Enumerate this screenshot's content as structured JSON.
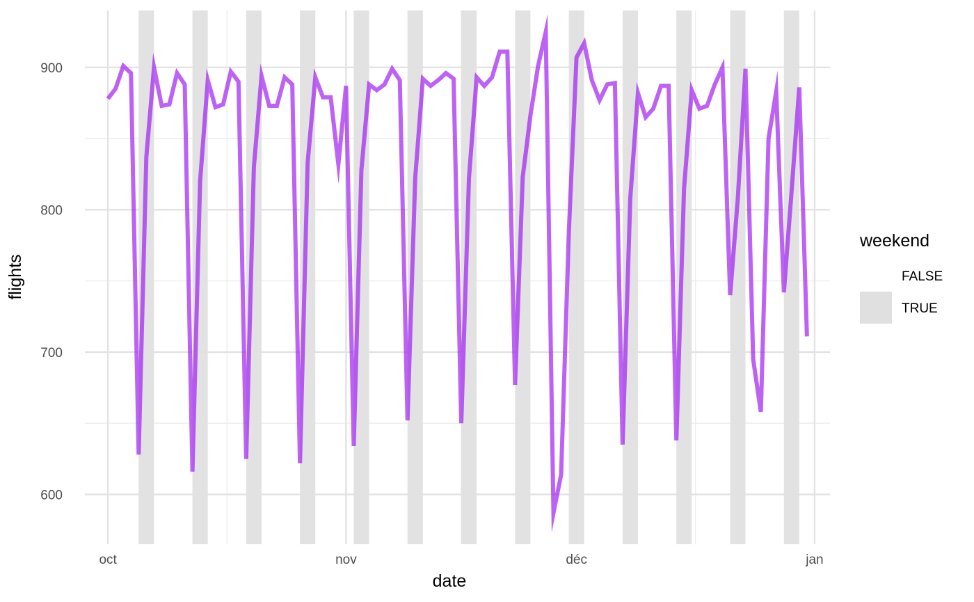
{
  "chart_data": {
    "type": "line",
    "xlabel": "date",
    "ylabel": "flights",
    "x_start": "2013-10-01",
    "x_end": "2013-12-31",
    "xlim": [
      "2013-09-28",
      "2014-01-03"
    ],
    "ylim": [
      565,
      940
    ],
    "y_ticks": [
      600,
      700,
      800,
      900
    ],
    "x_ticks": [
      {
        "date": "2013-10-01",
        "label": "oct"
      },
      {
        "date": "2013-11-01",
        "label": "nov"
      },
      {
        "date": "2013-12-01",
        "label": "déc"
      },
      {
        "date": "2014-01-01",
        "label": "jan"
      }
    ],
    "grid": true,
    "line_color": "#a020f0",
    "series": [
      {
        "values": [
          878,
          885,
          901,
          896,
          628,
          837,
          900,
          873,
          874,
          896,
          888,
          616,
          820,
          891,
          872,
          874,
          897,
          890,
          625,
          830,
          894,
          873,
          873,
          893,
          888,
          622,
          833,
          893,
          879,
          879,
          832,
          887,
          634,
          828,
          888,
          884,
          888,
          899,
          891,
          652,
          822,
          892,
          887,
          891,
          896,
          892,
          650,
          822,
          893,
          887,
          893,
          911,
          911,
          677,
          823,
          866,
          901,
          925,
          587,
          614,
          784,
          907,
          917,
          891,
          877,
          888,
          889,
          635,
          808,
          882,
          865,
          871,
          887,
          887,
          638,
          815,
          884,
          871,
          873,
          888,
          900,
          740,
          808,
          899,
          695,
          658,
          850,
          883,
          742,
          813,
          886,
          711
        ]
      }
    ],
    "weekend_bands": [
      "2013-10-05",
      "2013-10-12",
      "2013-10-19",
      "2013-10-26",
      "2013-11-02",
      "2013-11-09",
      "2013-11-16",
      "2013-11-23",
      "2013-11-30",
      "2013-12-07",
      "2013-12-14",
      "2013-12-21",
      "2013-12-28"
    ],
    "weekend_color": "#e0e0e0",
    "legend": {
      "title": "weekend",
      "placement": "right",
      "entries": [
        {
          "label": "FALSE",
          "fill": "#ffffff"
        },
        {
          "label": "TRUE",
          "fill": "#e0e0e0"
        }
      ]
    }
  }
}
